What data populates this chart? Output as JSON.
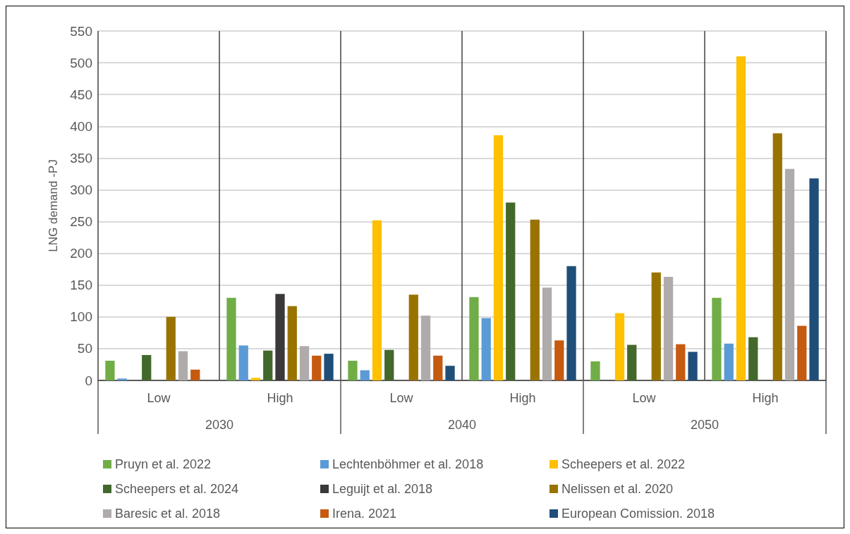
{
  "chart_data": {
    "type": "bar",
    "ylabel": "LNG demand -PJ",
    "categories": [
      "Low",
      "High",
      "Low",
      "High",
      "Low",
      "High"
    ],
    "annotations": [
      "2030",
      "2040",
      "2050"
    ],
    "ylim": [
      0,
      550
    ],
    "yticks": [
      0,
      50,
      100,
      150,
      200,
      250,
      300,
      350,
      400,
      450,
      500,
      550
    ],
    "grid": true,
    "legend": "bottom",
    "series": [
      {
        "name": "Pruyn et al. 2022",
        "color": "#70ad47",
        "values": [
          31,
          130,
          31,
          131,
          30,
          130
        ]
      },
      {
        "name": "Lechtenböhmer et al. 2018",
        "color": "#5b9bd5",
        "values": [
          3,
          55,
          16,
          98,
          null,
          58
        ]
      },
      {
        "name": "Scheepers et al. 2022",
        "color": "#ffc000",
        "values": [
          null,
          4,
          252,
          386,
          106,
          510
        ]
      },
      {
        "name": "Scheepers et al. 2024",
        "color": "#43682b",
        "values": [
          40,
          47,
          48,
          280,
          56,
          68
        ]
      },
      {
        "name": "Leguijt et al. 2018",
        "color": "#3a3838",
        "values": [
          null,
          136,
          null,
          null,
          null,
          null
        ]
      },
      {
        "name": "Nelissen et al. 2020",
        "color": "#997300",
        "values": [
          100,
          117,
          135,
          253,
          170,
          389
        ]
      },
      {
        "name": "Baresic et al. 2018",
        "color": "#afabab",
        "values": [
          46,
          54,
          102,
          146,
          163,
          333
        ]
      },
      {
        "name": "Irena. 2021",
        "color": "#c55a11",
        "values": [
          17,
          39,
          39,
          63,
          57,
          86
        ]
      },
      {
        "name": "European Comission. 2018",
        "color": "#1f4e79",
        "values": [
          null,
          42,
          23,
          180,
          45,
          318
        ]
      }
    ]
  }
}
